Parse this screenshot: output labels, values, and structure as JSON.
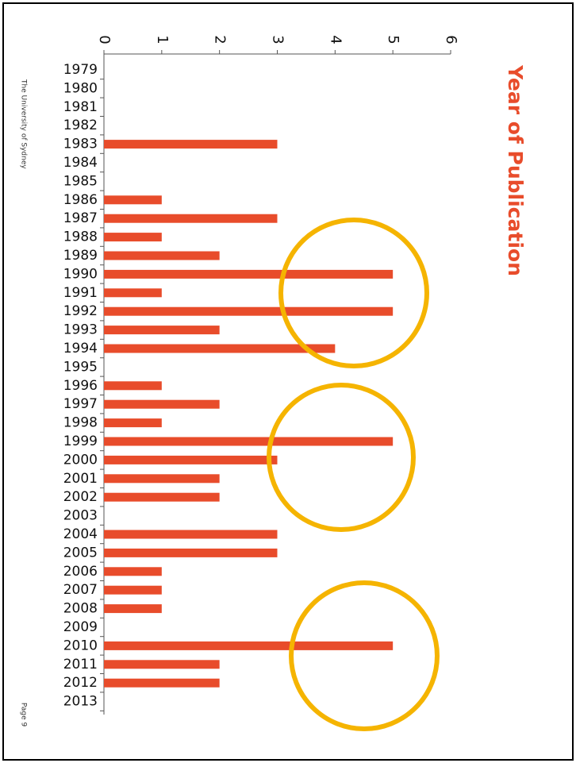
{
  "chart_data": {
    "type": "bar",
    "orientation": "horizontal",
    "title": "Year of Publication",
    "categories": [
      "1979",
      "1980",
      "1981",
      "1982",
      "1983",
      "1984",
      "1985",
      "1986",
      "1987",
      "1988",
      "1989",
      "1990",
      "1991",
      "1992",
      "1993",
      "1994",
      "1995",
      "1996",
      "1997",
      "1998",
      "1999",
      "2000",
      "2001",
      "2002",
      "2003",
      "2004",
      "2005",
      "2006",
      "2007",
      "2008",
      "2009",
      "2010",
      "2011",
      "2012",
      "2013"
    ],
    "values": [
      0,
      0,
      0,
      0,
      3,
      0,
      0,
      1,
      3,
      1,
      2,
      5,
      1,
      5,
      2,
      4,
      0,
      1,
      2,
      1,
      5,
      3,
      2,
      2,
      0,
      3,
      3,
      1,
      1,
      1,
      0,
      5,
      2,
      2,
      0
    ],
    "color": "#e84c2b",
    "xlim": [
      0,
      6
    ],
    "xticks": [
      0,
      1,
      2,
      3,
      4,
      5,
      6
    ],
    "footer": {
      "left": "The University of Sydney",
      "right": "Page 9"
    }
  }
}
